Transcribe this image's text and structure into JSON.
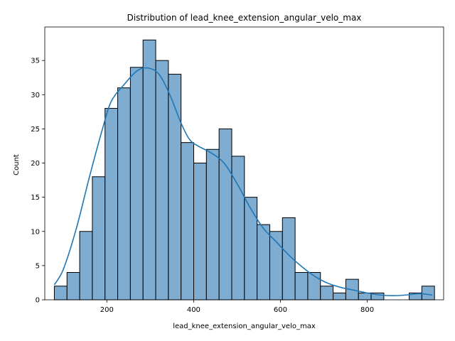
{
  "chart_data": {
    "type": "bar",
    "title": "Distribution of lead_knee_extension_angular_velo_max",
    "xlabel": "lead_knee_extension_angular_velo_max",
    "ylabel": "Count",
    "bin_start": 79,
    "bin_width": 29.2,
    "values": [
      2,
      4,
      10,
      18,
      28,
      31,
      34,
      38,
      35,
      33,
      23,
      20,
      22,
      25,
      21,
      15,
      11,
      10,
      12,
      4,
      4,
      2,
      1,
      3,
      1,
      1,
      0,
      0,
      1,
      2
    ],
    "kde": {
      "x": [
        79,
        100,
        130,
        160,
        190,
        210,
        240,
        270,
        295,
        320,
        345,
        370,
        390,
        410,
        440,
        470,
        500,
        530,
        560,
        590,
        620,
        650,
        680,
        710,
        740,
        770,
        800,
        830,
        860,
        890,
        920,
        950
      ],
      "y": [
        2.2,
        4.5,
        10.5,
        18.0,
        25.0,
        29.0,
        31.5,
        33.5,
        33.9,
        33.0,
        30.0,
        26.0,
        23.5,
        22.5,
        21.5,
        20.0,
        17.0,
        13.5,
        10.5,
        8.5,
        6.5,
        4.8,
        3.4,
        2.4,
        1.8,
        1.4,
        1.0,
        0.7,
        0.6,
        0.7,
        0.9,
        0.7
      ]
    },
    "xlim": [
      57,
      976
    ],
    "ylim": [
      0,
      39.9
    ],
    "x_ticks": [
      200,
      400,
      600,
      800
    ],
    "y_ticks": [
      0,
      5,
      10,
      15,
      20,
      25,
      30,
      35
    ],
    "colors": {
      "bar_fill": "#7facd1",
      "bar_edge": "#000000",
      "kde_line": "#1f77b4"
    },
    "grid": false
  }
}
